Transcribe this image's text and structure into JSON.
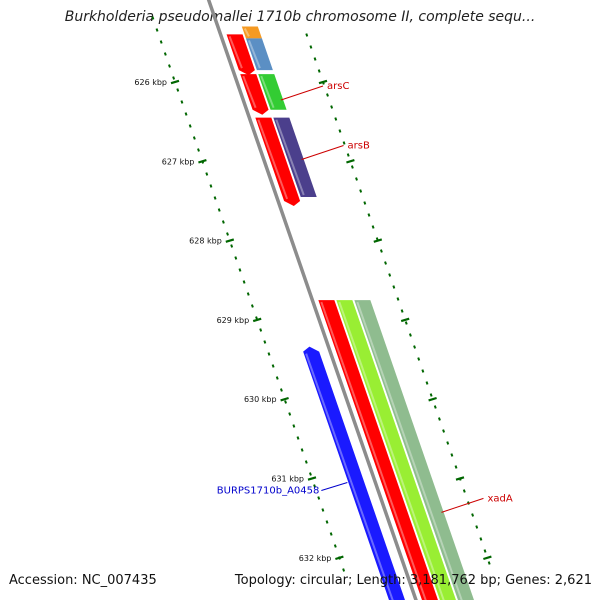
{
  "title": "Burkholderia pseudomallei 1710b chromosome II, complete sequ...",
  "footer": {
    "accession": "Accession: NC_007435",
    "summary": "Topology: circular; Length: 3,181,762 bp; Genes: 2,621"
  },
  "axis": {
    "unit": "kbp",
    "ticks": [
      {
        "kbp": 626,
        "label": "626 kbp"
      },
      {
        "kbp": 627,
        "label": "627 kbp"
      },
      {
        "kbp": 628,
        "label": "628 kbp"
      },
      {
        "kbp": 629,
        "label": "629 kbp"
      },
      {
        "kbp": 630,
        "label": "630 kbp"
      },
      {
        "kbp": 631,
        "label": "631 kbp"
      },
      {
        "kbp": 632,
        "label": "632 kbp"
      }
    ]
  },
  "features": [
    {
      "name": "orange-feature",
      "track": 2,
      "start": 625.3,
      "end": 625.45,
      "color": "#f59a23"
    },
    {
      "name": "red-cds-1",
      "track": 1,
      "start": 625.4,
      "end": 625.85,
      "color": "#ff0000",
      "arrow": "end"
    },
    {
      "name": "steelblue-gene",
      "track": 2,
      "start": 625.45,
      "end": 625.85,
      "color": "#5b8fc4"
    },
    {
      "name": "red-cds-2",
      "track": 1,
      "start": 625.9,
      "end": 626.35,
      "color": "#ff0000",
      "arrow": "end"
    },
    {
      "name": "green-gene-arsC",
      "track": 2,
      "start": 625.9,
      "end": 626.35,
      "color": "#33cc33"
    },
    {
      "name": "red-cds-3",
      "track": 1,
      "start": 626.45,
      "end": 627.5,
      "color": "#ff0000",
      "arrow": "end"
    },
    {
      "name": "purple-gene-arsB",
      "track": 2,
      "start": 626.45,
      "end": 627.45,
      "color": "#4b3f8c"
    },
    {
      "name": "red-cds-xadA",
      "track": 1,
      "start": 628.75,
      "end": 632.6,
      "color": "#ff0000"
    },
    {
      "name": "lime-gene-xadA",
      "track": 2,
      "start": 628.75,
      "end": 632.6,
      "color": "#99ee33"
    },
    {
      "name": "sage-feature-xadA",
      "track": 3,
      "start": 628.75,
      "end": 632.6,
      "color": "#8fbc8f"
    },
    {
      "name": "blue-gene-BURPS1710b_A0458",
      "track": -1,
      "start": 629.4,
      "end": 632.6,
      "color": "#1a1aff",
      "arrow": "start"
    }
  ],
  "labels": [
    {
      "text": "arsC",
      "kbp": 626.0,
      "track": 2,
      "color": "#cc0000"
    },
    {
      "text": "arsB",
      "kbp": 626.75,
      "track": 2,
      "color": "#cc0000"
    },
    {
      "text": "xadA",
      "kbp": 631.2,
      "track": 3,
      "color": "#cc0000"
    },
    {
      "text": "BURPS1710b_A0458",
      "kbp": 631.05,
      "track": -1,
      "color": "#0000cc"
    }
  ],
  "colors": {
    "backbone": "#8c8c8c",
    "ticks": "#006600"
  }
}
